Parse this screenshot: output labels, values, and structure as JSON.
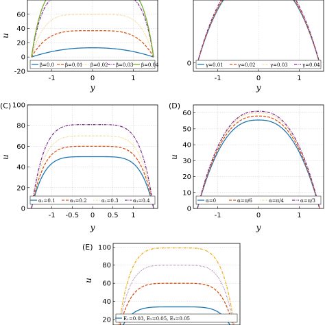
{
  "chart_data": [
    {
      "type": "line",
      "panel_label": "",
      "xlabel": "y",
      "ylabel": "u",
      "xlim": [
        -1.6,
        1.6
      ],
      "ylim": [
        -20,
        80
      ],
      "x_ticks": [
        "-1",
        "0",
        "1"
      ],
      "y_ticks": [
        "-20",
        "0",
        "20",
        "40",
        "60"
      ],
      "grid": true,
      "legend_position": "bottom",
      "series": [
        {
          "name": "β=0.0",
          "color": "#1f77b4",
          "dash": "",
          "center": 13,
          "p": 2.2
        },
        {
          "name": "β=0.01",
          "color": "#d95319",
          "dash": "4 2",
          "center": 37,
          "p": 4
        },
        {
          "name": "β=0.02",
          "color": "#edb120",
          "dash": "0.5 1.5",
          "center": 60,
          "p": 5
        },
        {
          "name": "β=0.03",
          "color": "#7e2f8e",
          "dash": "4 1.5 1 1.5",
          "center": 90,
          "p": 6
        },
        {
          "name": "β=0.04",
          "color": "#77ac30",
          "dash": "",
          "center": 100,
          "p": 6
        }
      ]
    },
    {
      "type": "line",
      "panel_label": "",
      "xlabel": "y",
      "ylabel": "",
      "xlim": [
        -1.6,
        1.6
      ],
      "ylim": [
        -10,
        75
      ],
      "x_ticks": [
        "-1",
        "0",
        "1"
      ],
      "y_ticks": [
        "0"
      ],
      "grid": true,
      "legend_position": "bottom",
      "series": [
        {
          "name": "γ=0.01",
          "color": "#1f77b4",
          "dash": "",
          "center": 100,
          "p": 2.5
        },
        {
          "name": "γ=0.02",
          "color": "#d95319",
          "dash": "4 2",
          "center": 102,
          "p": 2.5
        },
        {
          "name": "γ=0.03",
          "color": "#edb120",
          "dash": "0.5 1.5",
          "center": 104,
          "p": 2.5
        },
        {
          "name": "γ=0.04",
          "color": "#7e2f8e",
          "dash": "4 1.5 1 1.5",
          "center": 106,
          "p": 2.5
        }
      ]
    },
    {
      "type": "line",
      "panel_label": "(C)",
      "xlabel": "y",
      "ylabel": "u",
      "xlim": [
        -1.6,
        1.6
      ],
      "ylim": [
        0,
        100
      ],
      "x_ticks": [
        "-1",
        "-0.5",
        "0",
        "0.5",
        "1"
      ],
      "y_ticks": [
        "0",
        "20",
        "40",
        "60",
        "80",
        "100"
      ],
      "grid": true,
      "legend_position": "bottom",
      "series": [
        {
          "name": "α₁=0.1",
          "color": "#1f77b4",
          "dash": "",
          "center": 50,
          "p": 5
        },
        {
          "name": "α₁=0.2",
          "color": "#d95319",
          "dash": "4 2",
          "center": 60,
          "p": 5
        },
        {
          "name": "α₁=0.3",
          "color": "#edb120",
          "dash": "0.5 1.5",
          "center": 70,
          "p": 5
        },
        {
          "name": "α₁=0.4",
          "color": "#7e2f8e",
          "dash": "4 1.5 1 1.5",
          "center": 81,
          "p": 5
        }
      ]
    },
    {
      "type": "line",
      "panel_label": "(D)",
      "xlabel": "y",
      "ylabel": "u",
      "xlim": [
        -1.6,
        1.6
      ],
      "ylim": [
        0,
        65
      ],
      "x_ticks": [
        "-1",
        "0",
        "1"
      ],
      "y_ticks": [
        "0",
        "10",
        "20",
        "30",
        "40",
        "50",
        "60"
      ],
      "grid": true,
      "legend_position": "bottom",
      "series": [
        {
          "name": "α=0",
          "color": "#1f77b4",
          "dash": "",
          "center": 55.5,
          "p": 2.5
        },
        {
          "name": "α=π/6",
          "color": "#d95319",
          "dash": "4 2",
          "center": 58,
          "p": 2.5
        },
        {
          "name": "α=π/4",
          "color": "#edb120",
          "dash": "0.5 1.5",
          "center": 60,
          "p": 2.5
        },
        {
          "name": "α=π/3",
          "color": "#7e2f8e",
          "dash": "4 1.5 1 1.5",
          "center": 61,
          "p": 2.5
        }
      ]
    },
    {
      "type": "line",
      "panel_label": "(E)",
      "xlabel": "",
      "ylabel": "u",
      "xlim": [
        -1.6,
        1.6
      ],
      "ylim": [
        14,
        104
      ],
      "x_ticks": [],
      "y_ticks": [
        "20",
        "40",
        "60",
        "80",
        "100"
      ],
      "grid": true,
      "legend_position": "bottom",
      "legend_text": "E₁=0.03, E₂=0.05, E₃=0.05",
      "series": [
        {
          "name": "E₁=0.03, E₂=0.05, E₃=0.05",
          "color": "#1f77b4",
          "dash": "",
          "center": 34,
          "p": 5
        },
        {
          "name": "",
          "color": "#d95319",
          "dash": "4 2",
          "center": 60,
          "p": 5
        },
        {
          "name": "",
          "color": "#7e2f8e",
          "dash": "0.5 1.5",
          "center": 80,
          "p": 5
        },
        {
          "name": "",
          "color": "#edb120",
          "dash": "4 1.5 1 1.5",
          "center": 99,
          "p": 5
        }
      ]
    }
  ]
}
